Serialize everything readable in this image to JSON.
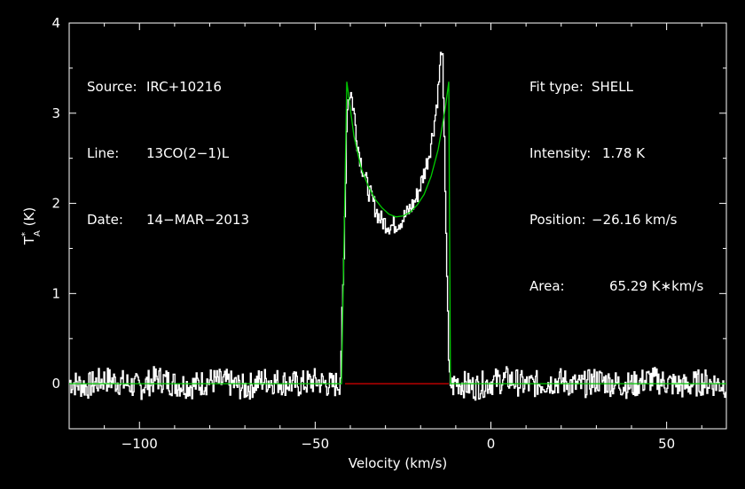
{
  "header": {
    "source_label": "Source:",
    "source_value": "IRC+10216",
    "line_label": "Line:",
    "line_value": "13CO(2−1)L",
    "date_label": "Date:",
    "date_value": "14−MAR−2013",
    "fit_type_label": "Fit type:",
    "fit_type_value": "SHELL",
    "intensity_label": "Intensity:",
    "intensity_value": "1.78 K",
    "position_label": "Position:",
    "position_value": "−26.16 km/s",
    "area_label": "Area:",
    "area_value": "65.29 K∗km/s"
  },
  "colors": {
    "background": "#000000",
    "axes": "#ffffff",
    "spectrum": "#ffffff",
    "fit": "#00cc00",
    "window": "#dd0000"
  },
  "chart_data": {
    "type": "line",
    "xlabel": "Velocity (km/s)",
    "ylabel_main": "T",
    "ylabel_sub": "A",
    "ylabel_sup": "*",
    "ylabel_unit": " (K)",
    "xlim": [
      -120,
      67
    ],
    "ylim": [
      -0.5,
      4
    ],
    "xticks": [
      -100,
      -50,
      0,
      50
    ],
    "xtick_labels": [
      "−100",
      "−50",
      "0",
      "50"
    ],
    "yticks": [
      0,
      1,
      2,
      3,
      4
    ],
    "ytick_labels": [
      "0",
      "1",
      "2",
      "3",
      "4"
    ],
    "grid": false,
    "series": [
      {
        "role": "spectrum",
        "style": "histogram",
        "x": [
          -120,
          -115,
          -110,
          -105,
          -100,
          -95,
          -90,
          -85,
          -80,
          -75,
          -70,
          -65,
          -60,
          -55,
          -50,
          -45,
          -43,
          -42,
          -41,
          -40,
          -39,
          -38,
          -37,
          -36,
          -35,
          -34,
          -33,
          -32,
          -31,
          -30,
          -29,
          -28,
          -27,
          -26,
          -25,
          -24,
          -23,
          -22,
          -21,
          -20,
          -19,
          -18,
          -17,
          -16,
          -15,
          -14,
          -13,
          -12,
          -11,
          -10,
          -5,
          0,
          5,
          10,
          15,
          20,
          25,
          30,
          35,
          40,
          45,
          50,
          55,
          60,
          67
        ],
        "y": [
          0.02,
          -0.03,
          0.05,
          0.01,
          -0.04,
          0.06,
          0.0,
          -0.02,
          0.03,
          0.01,
          -0.05,
          0.04,
          0.02,
          -0.01,
          0.03,
          -0.02,
          0.02,
          1.2,
          3.1,
          3.25,
          3.0,
          2.65,
          2.45,
          2.3,
          2.15,
          2.05,
          1.95,
          1.85,
          1.8,
          1.78,
          1.76,
          1.75,
          1.78,
          1.8,
          1.84,
          1.88,
          1.95,
          2.0,
          2.1,
          2.22,
          2.35,
          2.5,
          2.7,
          2.95,
          3.3,
          3.8,
          2.0,
          0.03,
          -0.03,
          0.02,
          -0.04,
          0.02,
          0.05,
          -0.02,
          0.01,
          0.03,
          -0.03,
          0.04,
          0.0,
          -0.02,
          0.05,
          0.01,
          -0.03,
          0.02,
          -0.01
        ]
      },
      {
        "role": "fit",
        "x": [
          -120,
          -42.5,
          -41,
          -39,
          -37,
          -35,
          -33,
          -31,
          -29,
          -27,
          -25,
          -23,
          -21,
          -19,
          -17,
          -15,
          -13,
          -12,
          -11.5,
          67
        ],
        "y": [
          0,
          0,
          3.35,
          2.75,
          2.4,
          2.2,
          2.05,
          1.95,
          1.88,
          1.85,
          1.86,
          1.9,
          1.98,
          2.1,
          2.3,
          2.6,
          3.05,
          3.35,
          0,
          0
        ]
      },
      {
        "role": "window",
        "x": [
          -41.5,
          -12
        ],
        "y": [
          0,
          0
        ]
      }
    ]
  }
}
